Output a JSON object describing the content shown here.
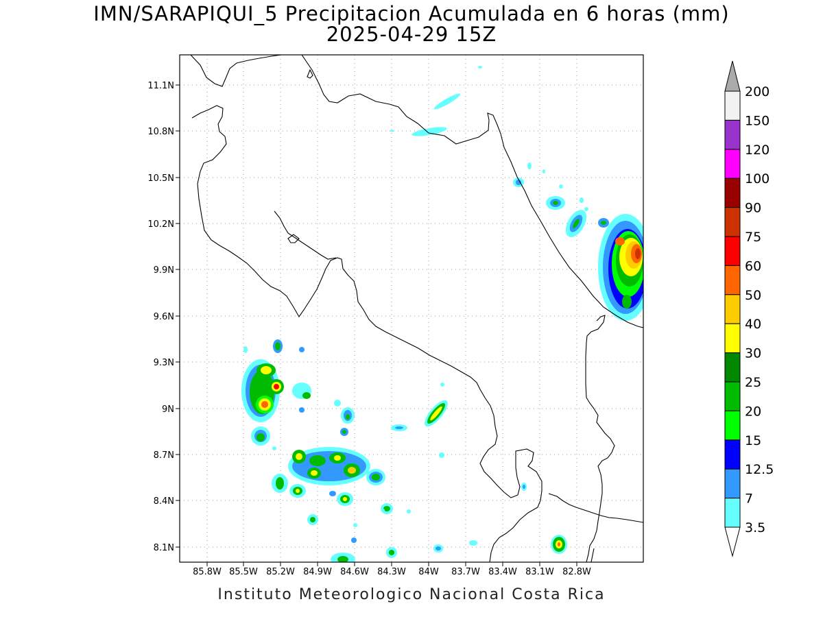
{
  "title": "IMN/SARAPIQUI_5 Precipitacion Acumulada en 6 horas (mm)",
  "subtitle": "2025-04-29 15Z",
  "footer": "Instituto Meteorologico Nacional Costa Rica",
  "lat_labels": [
    "11.1N",
    "10.8N",
    "10.5N",
    "10.2N",
    "9.9N",
    "9.6N",
    "9.3N",
    "9N",
    "8.7N",
    "8.4N",
    "8.1N"
  ],
  "lon_labels": [
    "85.8W",
    "85.5W",
    "85.2W",
    "84.9W",
    "84.6W",
    "84.3W",
    "84W",
    "83.7W",
    "83.4W",
    "83.1W",
    "82.8W"
  ],
  "colorbar": {
    "labels": [
      "200",
      "150",
      "120",
      "100",
      "90",
      "75",
      "60",
      "50",
      "40",
      "30",
      "25",
      "20",
      "15",
      "12.5",
      "7",
      "3.5"
    ],
    "colors": [
      "#f2f2f2",
      "#9933cc",
      "#ff00ff",
      "#990000",
      "#cc3300",
      "#ff0000",
      "#ff6600",
      "#ffcc00",
      "#ffff00",
      "#008800",
      "#00bb00",
      "#00ff00",
      "#0000ff",
      "#3399ff",
      "#66ffff"
    ],
    "over_color": "#aaaaaa",
    "under_color": "#ffffff"
  }
}
